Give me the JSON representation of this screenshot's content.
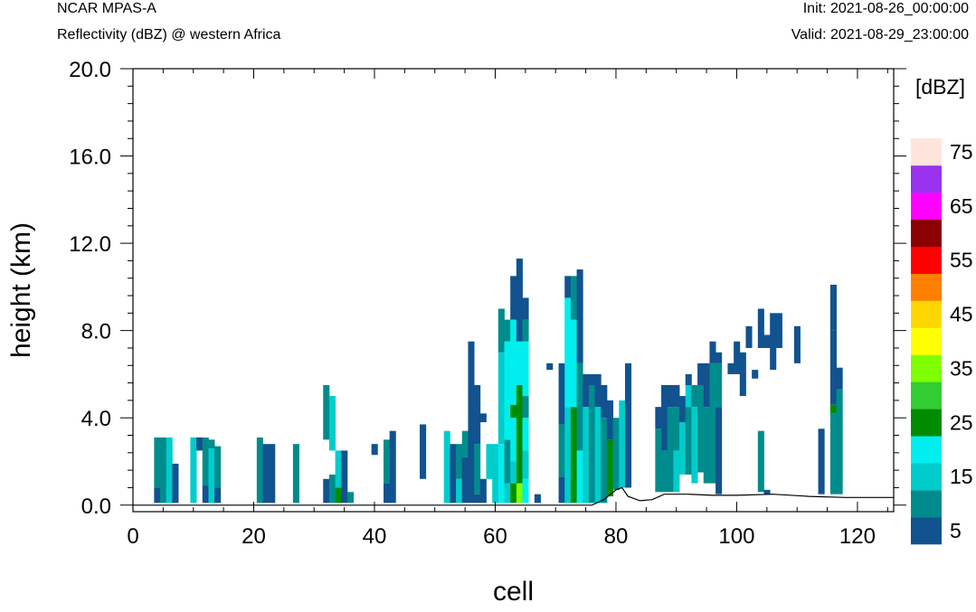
{
  "header": {
    "left_title": "NCAR MPAS-A",
    "left_subtitle": "Reflectivity (dBZ) @ western Africa",
    "right_init": "Init: 2021-08-26_00:00:00",
    "right_valid": "Valid: 2021-08-29_23:00:00"
  },
  "chart_data": {
    "type": "heatmap",
    "title": "Reflectivity (dBZ) @ western Africa",
    "xlabel": "cell",
    "ylabel": "height (km)",
    "xlim": [
      0,
      126
    ],
    "ylim": [
      -0.3,
      20.0
    ],
    "x_ticks": [
      "0",
      "20",
      "40",
      "60",
      "80",
      "100",
      "120"
    ],
    "y_ticks": [
      "0.0",
      "4.0",
      "8.0",
      "12.0",
      "16.0",
      "20.0"
    ],
    "colorbar": {
      "units": "[dBZ]",
      "labels": [
        "5",
        "15",
        "25",
        "35",
        "45",
        "55",
        "65",
        "75"
      ],
      "levels": [
        5,
        10,
        15,
        20,
        25,
        30,
        35,
        40,
        45,
        50,
        55,
        60,
        65,
        70,
        75
      ],
      "colors": [
        "#11528f",
        "#008c8c",
        "#00cccc",
        "#00eeee",
        "#008c00",
        "#32cd32",
        "#7fff00",
        "#ffff00",
        "#ffd700",
        "#ff8000",
        "#ff0000",
        "#8b0000",
        "#ff00ff",
        "#9932ee",
        "#ffe4dc"
      ]
    },
    "columns": [
      {
        "x": 4,
        "segments": [
          [
            0.1,
            0.8,
            5
          ],
          [
            0.8,
            3.1,
            10
          ]
        ]
      },
      {
        "x": 5,
        "segments": [
          [
            0.1,
            3.1,
            10
          ]
        ]
      },
      {
        "x": 6,
        "segments": [
          [
            0.1,
            3.1,
            15
          ]
        ]
      },
      {
        "x": 7,
        "segments": [
          [
            0.1,
            1.9,
            5
          ]
        ]
      },
      {
        "x": 10,
        "segments": [
          [
            0.1,
            3.1,
            15
          ]
        ]
      },
      {
        "x": 11,
        "segments": [
          [
            2.5,
            3.1,
            5
          ]
        ]
      },
      {
        "x": 12,
        "segments": [
          [
            0.1,
            0.9,
            5
          ],
          [
            0.9,
            3.1,
            10
          ]
        ]
      },
      {
        "x": 13,
        "segments": [
          [
            0.1,
            2.6,
            15
          ],
          [
            2.6,
            3.0,
            10
          ]
        ]
      },
      {
        "x": 14,
        "segments": [
          [
            0.1,
            0.8,
            5
          ],
          [
            0.8,
            2.7,
            10
          ]
        ]
      },
      {
        "x": 21,
        "segments": [
          [
            0.1,
            3.1,
            10
          ]
        ]
      },
      {
        "x": 22,
        "segments": [
          [
            0.1,
            2.8,
            5
          ]
        ]
      },
      {
        "x": 23,
        "segments": [
          [
            0.1,
            2.8,
            5
          ]
        ]
      },
      {
        "x": 27,
        "segments": [
          [
            0.1,
            2.8,
            10
          ]
        ]
      },
      {
        "x": 32,
        "segments": [
          [
            0.1,
            1.2,
            5
          ],
          [
            3.0,
            5.5,
            10
          ]
        ]
      },
      {
        "x": 33,
        "segments": [
          [
            0.1,
            1.4,
            10
          ],
          [
            2.5,
            5.0,
            15
          ]
        ]
      },
      {
        "x": 34,
        "segments": [
          [
            0.1,
            0.8,
            25
          ],
          [
            0.8,
            2.5,
            15
          ]
        ]
      },
      {
        "x": 35,
        "segments": [
          [
            0.1,
            2.5,
            5
          ]
        ]
      },
      {
        "x": 36,
        "segments": [
          [
            0.1,
            0.6,
            10
          ]
        ]
      },
      {
        "x": 40,
        "segments": [
          [
            2.3,
            2.8,
            5
          ]
        ]
      },
      {
        "x": 42,
        "segments": [
          [
            0.1,
            1.0,
            5
          ],
          [
            1.0,
            3.0,
            10
          ]
        ]
      },
      {
        "x": 43,
        "segments": [
          [
            0.1,
            3.4,
            5
          ]
        ]
      },
      {
        "x": 48,
        "segments": [
          [
            1.2,
            3.7,
            5
          ]
        ]
      },
      {
        "x": 52,
        "segments": [
          [
            0.1,
            3.4,
            15
          ]
        ]
      },
      {
        "x": 53,
        "segments": [
          [
            0.1,
            2.8,
            5
          ]
        ]
      },
      {
        "x": 54,
        "segments": [
          [
            0.1,
            1.2,
            15
          ],
          [
            1.2,
            2.8,
            10
          ]
        ]
      },
      {
        "x": 55,
        "segments": [
          [
            0.1,
            2.2,
            5
          ],
          [
            2.2,
            3.4,
            10
          ]
        ]
      },
      {
        "x": 56,
        "segments": [
          [
            0.1,
            7.5,
            5
          ]
        ]
      },
      {
        "x": 57,
        "segments": [
          [
            0.1,
            0.5,
            5
          ],
          [
            0.5,
            2.8,
            10
          ],
          [
            2.8,
            5.5,
            5
          ]
        ]
      },
      {
        "x": 58,
        "segments": [
          [
            0.1,
            1.2,
            5
          ],
          [
            3.8,
            4.2,
            5
          ]
        ]
      },
      {
        "x": 59,
        "segments": [
          [
            1.2,
            2.8,
            15
          ]
        ]
      },
      {
        "x": 60,
        "segments": [
          [
            0.1,
            2.8,
            15
          ]
        ]
      },
      {
        "x": 61,
        "segments": [
          [
            0.1,
            2.8,
            20
          ],
          [
            2.8,
            7.0,
            15
          ],
          [
            7.0,
            9.0,
            10
          ]
        ]
      },
      {
        "x": 62,
        "segments": [
          [
            0.1,
            1.0,
            15
          ],
          [
            1.0,
            3.0,
            10
          ],
          [
            3.0,
            7.5,
            20
          ],
          [
            7.5,
            8.5,
            10
          ]
        ]
      },
      {
        "x": 63,
        "segments": [
          [
            0.1,
            1.0,
            25
          ],
          [
            1.0,
            2.0,
            15
          ],
          [
            2.0,
            4.0,
            20
          ],
          [
            4.0,
            4.6,
            25
          ],
          [
            4.6,
            8.5,
            20
          ],
          [
            8.5,
            10.5,
            5
          ]
        ]
      },
      {
        "x": 64,
        "segments": [
          [
            0.1,
            1.0,
            35
          ],
          [
            1.0,
            2.0,
            25
          ],
          [
            2.0,
            5.5,
            25
          ],
          [
            5.5,
            7.5,
            20
          ],
          [
            7.5,
            11.3,
            5
          ]
        ]
      },
      {
        "x": 65,
        "segments": [
          [
            0.1,
            1.2,
            20
          ],
          [
            1.2,
            2.5,
            15
          ],
          [
            2.5,
            4.0,
            20
          ],
          [
            4.0,
            5.0,
            10
          ],
          [
            5.0,
            7.5,
            20
          ],
          [
            7.5,
            8.5,
            10
          ],
          [
            8.5,
            9.5,
            5
          ]
        ]
      },
      {
        "x": 67,
        "segments": [
          [
            0.1,
            0.5,
            5
          ]
        ]
      },
      {
        "x": 69,
        "segments": [
          [
            6.2,
            6.5,
            5
          ]
        ]
      },
      {
        "x": 71,
        "segments": [
          [
            0.1,
            1.3,
            5
          ],
          [
            1.3,
            3.7,
            10
          ],
          [
            3.7,
            6.5,
            5
          ]
        ]
      },
      {
        "x": 72,
        "segments": [
          [
            0.1,
            4.5,
            15
          ],
          [
            4.5,
            9.5,
            20
          ],
          [
            9.5,
            10.5,
            5
          ]
        ]
      },
      {
        "x": 73,
        "segments": [
          [
            0.1,
            4.5,
            25
          ],
          [
            4.5,
            8.5,
            20
          ],
          [
            8.5,
            10.5,
            10
          ]
        ]
      },
      {
        "x": 74,
        "segments": [
          [
            0.1,
            2.5,
            20
          ],
          [
            2.5,
            6.5,
            10
          ],
          [
            6.5,
            10.8,
            5
          ]
        ]
      },
      {
        "x": 75,
        "segments": [
          [
            0.1,
            4.5,
            15
          ],
          [
            4.5,
            6.0,
            5
          ]
        ]
      },
      {
        "x": 76,
        "segments": [
          [
            0.1,
            5.5,
            10
          ],
          [
            5.5,
            6.0,
            5
          ]
        ]
      },
      {
        "x": 77,
        "segments": [
          [
            0.1,
            4.5,
            15
          ],
          [
            4.5,
            6.0,
            5
          ]
        ]
      },
      {
        "x": 78,
        "segments": [
          [
            0.1,
            4.0,
            10
          ],
          [
            4.0,
            5.5,
            5
          ]
        ]
      },
      {
        "x": 79,
        "segments": [
          [
            0.4,
            3.0,
            25
          ],
          [
            3.0,
            4.8,
            5
          ]
        ]
      },
      {
        "x": 80,
        "segments": [
          [
            0.7,
            4.0,
            10
          ]
        ]
      },
      {
        "x": 81,
        "segments": [
          [
            0.8,
            4.8,
            15
          ]
        ]
      },
      {
        "x": 82,
        "segments": [
          [
            0.8,
            6.5,
            5
          ]
        ]
      },
      {
        "x": 87,
        "segments": [
          [
            0.6,
            3.5,
            10
          ],
          [
            3.5,
            4.5,
            5
          ]
        ]
      },
      {
        "x": 88,
        "segments": [
          [
            0.6,
            2.5,
            10
          ],
          [
            2.5,
            5.5,
            5
          ]
        ]
      },
      {
        "x": 89,
        "segments": [
          [
            0.6,
            4.5,
            10
          ],
          [
            4.5,
            5.5,
            5
          ]
        ]
      },
      {
        "x": 90,
        "segments": [
          [
            0.6,
            2.5,
            15
          ],
          [
            2.5,
            4.5,
            10
          ],
          [
            4.5,
            5.5,
            5
          ]
        ]
      },
      {
        "x": 91,
        "segments": [
          [
            1.4,
            3.8,
            15
          ],
          [
            3.8,
            5.0,
            5
          ]
        ]
      },
      {
        "x": 92,
        "segments": [
          [
            1.4,
            4.5,
            10
          ],
          [
            4.5,
            5.5,
            15
          ],
          [
            5.5,
            6.0,
            5
          ]
        ]
      },
      {
        "x": 93,
        "segments": [
          [
            1.0,
            4.5,
            15
          ],
          [
            4.5,
            5.5,
            10
          ]
        ]
      },
      {
        "x": 94,
        "segments": [
          [
            1.5,
            5.5,
            10
          ],
          [
            5.5,
            6.5,
            5
          ]
        ]
      },
      {
        "x": 95,
        "segments": [
          [
            1.0,
            4.5,
            10
          ],
          [
            4.5,
            6.5,
            5
          ]
        ]
      },
      {
        "x": 96,
        "segments": [
          [
            1.0,
            6.5,
            10
          ],
          [
            6.5,
            7.5,
            5
          ]
        ]
      },
      {
        "x": 97,
        "segments": [
          [
            0.5,
            4.5,
            5
          ],
          [
            4.5,
            6.5,
            10
          ],
          [
            6.5,
            7.0,
            5
          ]
        ]
      },
      {
        "x": 99,
        "segments": [
          [
            6.0,
            6.5,
            5
          ]
        ]
      },
      {
        "x": 100,
        "segments": [
          [
            6.0,
            7.5,
            5
          ]
        ]
      },
      {
        "x": 101,
        "segments": [
          [
            5.0,
            7.0,
            5
          ]
        ]
      },
      {
        "x": 102,
        "segments": [
          [
            7.2,
            8.2,
            5
          ]
        ]
      },
      {
        "x": 103,
        "segments": [
          [
            5.8,
            6.2,
            5
          ]
        ]
      },
      {
        "x": 104,
        "segments": [
          [
            0.6,
            3.4,
            10
          ],
          [
            7.2,
            9.0,
            5
          ]
        ]
      },
      {
        "x": 105,
        "segments": [
          [
            0.5,
            0.7,
            5
          ],
          [
            7.2,
            7.8,
            5
          ]
        ]
      },
      {
        "x": 106,
        "segments": [
          [
            6.2,
            8.8,
            5
          ]
        ]
      },
      {
        "x": 107,
        "segments": [
          [
            7.2,
            8.8,
            5
          ]
        ]
      },
      {
        "x": 110,
        "segments": [
          [
            6.5,
            8.2,
            5
          ]
        ]
      },
      {
        "x": 114,
        "segments": [
          [
            0.5,
            3.5,
            5
          ]
        ]
      },
      {
        "x": 116,
        "segments": [
          [
            0.5,
            4.2,
            10
          ],
          [
            4.2,
            4.6,
            25
          ],
          [
            4.6,
            8.0,
            5
          ],
          [
            8.0,
            10.1,
            5
          ]
        ]
      },
      {
        "x": 117,
        "segments": [
          [
            0.5,
            5.3,
            10
          ],
          [
            5.3,
            6.3,
            5
          ]
        ]
      }
    ],
    "terrain": [
      [
        0,
        0.0
      ],
      [
        76,
        0.0
      ],
      [
        78,
        0.25
      ],
      [
        80,
        0.7
      ],
      [
        81,
        0.8
      ],
      [
        82,
        0.4
      ],
      [
        84,
        0.2
      ],
      [
        86,
        0.25
      ],
      [
        88,
        0.5
      ],
      [
        92,
        0.5
      ],
      [
        96,
        0.45
      ],
      [
        100,
        0.45
      ],
      [
        106,
        0.5
      ],
      [
        112,
        0.4
      ],
      [
        118,
        0.35
      ],
      [
        126,
        0.35
      ]
    ]
  }
}
